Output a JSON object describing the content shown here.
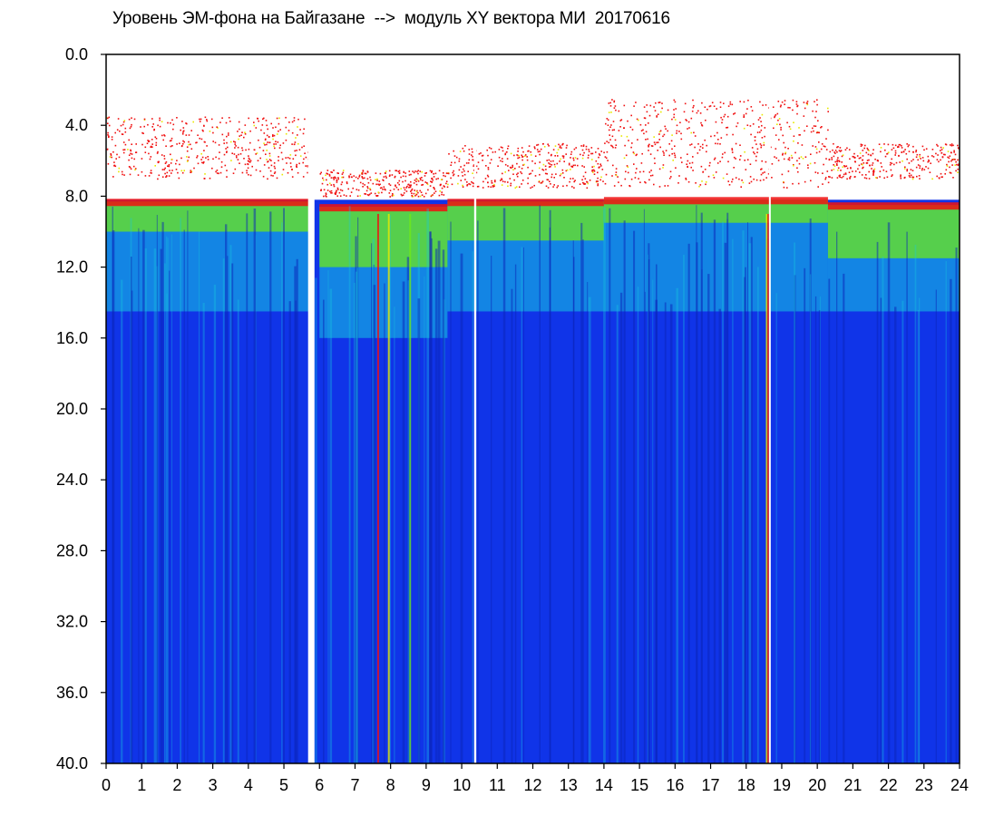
{
  "chart_data": {
    "type": "heatmap",
    "title": "Уровень ЭМ-фона на Байгазане  -->  модуль XY вектора МИ  20170616",
    "xlabel": "",
    "ylabel": "",
    "xlim": [
      0,
      24
    ],
    "ylim": [
      0,
      40
    ],
    "y_inverted": true,
    "x_ticks": [
      {
        "value": 0,
        "label": "0"
      },
      {
        "value": 1,
        "label": "1"
      },
      {
        "value": 2,
        "label": "2"
      },
      {
        "value": 3,
        "label": "3"
      },
      {
        "value": 4,
        "label": "4"
      },
      {
        "value": 5,
        "label": "5"
      },
      {
        "value": 6,
        "label": "6"
      },
      {
        "value": 7,
        "label": "7"
      },
      {
        "value": 8,
        "label": "8"
      },
      {
        "value": 9,
        "label": "9"
      },
      {
        "value": 10,
        "label": "10"
      },
      {
        "value": 11,
        "label": "11"
      },
      {
        "value": 12,
        "label": "12"
      },
      {
        "value": 13,
        "label": "13"
      },
      {
        "value": 14,
        "label": "14"
      },
      {
        "value": 15,
        "label": "15"
      },
      {
        "value": 16,
        "label": "16"
      },
      {
        "value": 17,
        "label": "17"
      },
      {
        "value": 18,
        "label": "18"
      },
      {
        "value": 19,
        "label": "19"
      },
      {
        "value": 20,
        "label": "20"
      },
      {
        "value": 21,
        "label": "21"
      },
      {
        "value": 22,
        "label": "22"
      },
      {
        "value": 23,
        "label": "23"
      },
      {
        "value": 24,
        "label": "24"
      }
    ],
    "y_ticks": [
      {
        "value": 0,
        "label": "0.0"
      },
      {
        "value": 4,
        "label": "4.0"
      },
      {
        "value": 8,
        "label": "8.0"
      },
      {
        "value": 12,
        "label": "12.0"
      },
      {
        "value": 16,
        "label": "16.0"
      },
      {
        "value": 20,
        "label": "20.0"
      },
      {
        "value": 24,
        "label": "24.0"
      },
      {
        "value": 28,
        "label": "28.0"
      },
      {
        "value": 32,
        "label": "32.0"
      },
      {
        "value": 36,
        "label": "36.0"
      },
      {
        "value": 40,
        "label": "40.0"
      }
    ],
    "colors": {
      "background": "#1034e8",
      "cyan": "#16c8e0",
      "green": "#6ee81a",
      "yellow": "#e8e800",
      "red": "#f01010"
    },
    "bands": [
      {
        "x0": 0.0,
        "x1": 5.7,
        "red_top": 3.5,
        "red_bottom": 7.0,
        "noise_top": 8.3,
        "green_bottom": 10.0,
        "cyan_bottom": 14.5
      },
      {
        "x0": 6.0,
        "x1": 9.6,
        "red_top": 6.5,
        "red_bottom": 8.0,
        "noise_top": 8.6,
        "green_bottom": 12.0,
        "cyan_bottom": 16.0
      },
      {
        "x0": 9.6,
        "x1": 14.0,
        "red_top": 5.0,
        "red_bottom": 7.5,
        "noise_top": 8.3,
        "green_bottom": 10.5,
        "cyan_bottom": 14.5
      },
      {
        "x0": 14.0,
        "x1": 20.3,
        "red_top": 2.5,
        "red_bottom": 7.5,
        "noise_top": 8.2,
        "green_bottom": 9.5,
        "cyan_bottom": 14.5
      },
      {
        "x0": 20.3,
        "x1": 24.0,
        "red_top": 5.0,
        "red_bottom": 7.0,
        "noise_top": 8.5,
        "green_bottom": 11.5,
        "cyan_bottom": 14.5
      }
    ],
    "gaps": [
      {
        "x": 5.68,
        "width": 0.18
      },
      {
        "x": 10.35,
        "width": 0.06
      },
      {
        "x": 18.64,
        "width": 0.05
      }
    ],
    "highlight_lines": [
      {
        "x": 7.65,
        "color": "#f01010"
      },
      {
        "x": 7.95,
        "color": "#e8e800"
      },
      {
        "x": 8.55,
        "color": "#6ee81a"
      },
      {
        "x": 18.58,
        "color": "#e8e800"
      },
      {
        "x": 18.62,
        "color": "#f01010"
      }
    ]
  }
}
